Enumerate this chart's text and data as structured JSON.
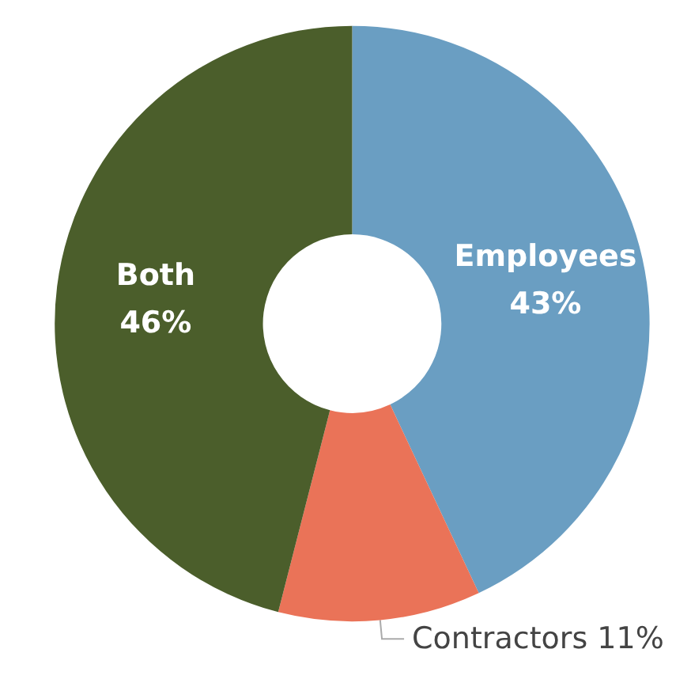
{
  "chart_data": {
    "type": "donut",
    "categories": [
      "Employees",
      "Contractors",
      "Both"
    ],
    "values": [
      43,
      11,
      46
    ],
    "value_labels": [
      "43%",
      "11%",
      "46%"
    ],
    "colors": [
      "#6a9ec2",
      "#ea7358",
      "#4b5e2b"
    ],
    "legend": false
  }
}
